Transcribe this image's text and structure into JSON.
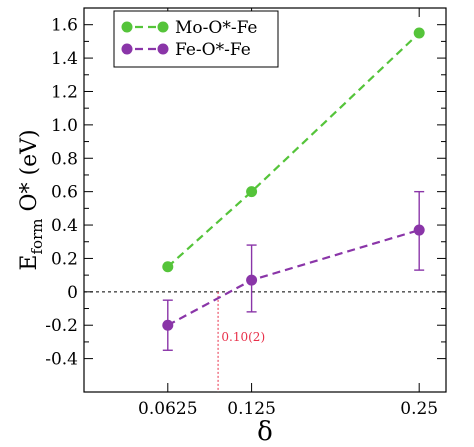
{
  "chart_data": {
    "type": "line",
    "xlabel": "δ",
    "ylabel_main": "E",
    "ylabel_sub": "form",
    "ylabel_rest": " O* (eV)",
    "xlim": [
      0.0,
      0.27
    ],
    "ylim": [
      -0.6,
      1.7
    ],
    "x_ticks": [
      0.0625,
      0.125,
      0.25
    ],
    "x_tick_labels": [
      "0.0625",
      "0.125",
      "0.25"
    ],
    "y_ticks": [
      -0.4,
      -0.2,
      0,
      0.2,
      0.4,
      0.6,
      0.8,
      1.0,
      1.2,
      1.4,
      1.6
    ],
    "y_tick_labels": [
      "-0.4",
      "-0.2",
      "0",
      "0.2",
      "0.4",
      "0.6",
      "0.8",
      "1.0",
      "1.2",
      "1.4",
      "1.6"
    ],
    "grid": false,
    "legend_position": "top-left",
    "series": [
      {
        "name": "Mo-O*-Fe",
        "color": "#55c43a",
        "x": [
          0.0625,
          0.125,
          0.25
        ],
        "y": [
          0.15,
          0.6,
          1.55
        ],
        "error_low": [
          0,
          0,
          0
        ],
        "error_high": [
          0,
          0,
          0
        ]
      },
      {
        "name": "Fe-O*-Fe",
        "color": "#8a35a8",
        "x": [
          0.0625,
          0.125,
          0.25
        ],
        "y": [
          -0.2,
          0.07,
          0.37
        ],
        "error_low": [
          -0.35,
          -0.12,
          0.13
        ],
        "error_high": [
          -0.05,
          0.28,
          0.6
        ]
      }
    ],
    "reference_line": {
      "y": 0,
      "color": "#000000"
    },
    "crossing_marker": {
      "x": 0.1,
      "color": "#e8304a"
    },
    "annotations": [
      {
        "text": "0.10(2)",
        "x": 0.101,
        "y": -0.27,
        "color": "#e8304a"
      }
    ]
  }
}
